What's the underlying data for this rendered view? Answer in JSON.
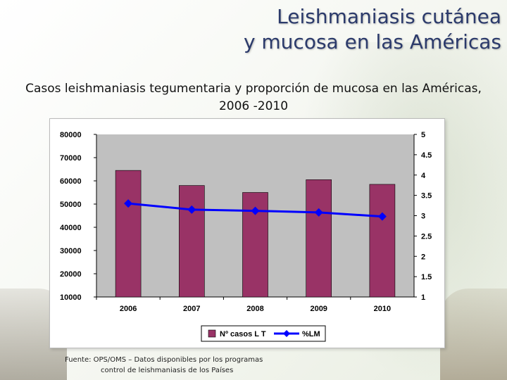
{
  "slide": {
    "title_line1": "Leishmaniasis cutánea",
    "title_line2": "y mucosa en las Américas",
    "subtitle": "Casos leishmaniasis tegumentaria y proporción de mucosa en las Américas, 2006 -2010",
    "footer_line1": "Fuente: OPS/OMS – Datos disponibles por los programas",
    "footer_line2": "control de leishmaniasis de los Países"
  },
  "colors": {
    "title": "#2b3a6b",
    "bar": "#993366",
    "line": "#0000ff",
    "plot_bg": "#c0c0c0"
  },
  "chart_data": {
    "type": "bar",
    "categories": [
      "2006",
      "2007",
      "2008",
      "2009",
      "2010"
    ],
    "series": [
      {
        "name": "Nº casos L T",
        "type": "bar",
        "axis": "left",
        "values": [
          64500,
          58000,
          55000,
          60500,
          58500
        ]
      },
      {
        "name": "%LM",
        "type": "line",
        "axis": "right",
        "values": [
          3.3,
          3.15,
          3.12,
          3.08,
          2.98
        ]
      }
    ],
    "ylim_left": [
      10000,
      80000
    ],
    "yticks_left": [
      "80000",
      "70000",
      "60000",
      "50000",
      "40000",
      "30000",
      "20000",
      "10000"
    ],
    "ylim_right": [
      1,
      5
    ],
    "yticks_right": [
      "5",
      "4.5",
      "4",
      "3.5",
      "3",
      "2.5",
      "2",
      "1.5",
      "1"
    ],
    "legend": "bottom"
  }
}
